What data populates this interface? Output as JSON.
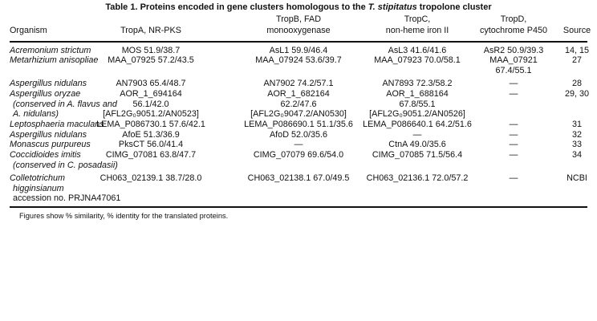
{
  "title": {
    "prefix": "Table 1. Proteins encoded in gene clusters homologous to the ",
    "italic": "T. stipitatus",
    "suffix": " tropolone cluster"
  },
  "columns": [
    {
      "key": "organism",
      "lines": [
        "Organism"
      ]
    },
    {
      "key": "tropA",
      "lines": [
        "TropA, NR-PKS"
      ]
    },
    {
      "key": "tropB",
      "lines": [
        "TropB, FAD",
        "monooxygenase"
      ]
    },
    {
      "key": "tropC",
      "lines": [
        "TropC,",
        "non-heme iron II"
      ]
    },
    {
      "key": "tropD",
      "lines": [
        "TropD,",
        "cytochrome P450"
      ]
    },
    {
      "key": "source",
      "lines": [
        "Source"
      ]
    }
  ],
  "rows": [
    {
      "organism": [
        "Acremonium strictum"
      ],
      "tropA": [
        "MOS 51.9/38.7"
      ],
      "tropB": [
        "AsL1 59.9/46.4"
      ],
      "tropC": [
        "AsL3 41.6/41.6"
      ],
      "tropD": [
        "AsR2 50.9/39.3"
      ],
      "source": [
        "14, 15"
      ]
    },
    {
      "organism": [
        "Metarhizium anisopliae"
      ],
      "tropA": [
        "MAA_07925 57.2/43.5"
      ],
      "tropB": [
        "MAA_07924 53.6/39.7"
      ],
      "tropC": [
        "MAA_07923 70.0/58.1"
      ],
      "tropD": [
        "MAA_07921",
        "67.4/55.1"
      ],
      "source": [
        "27"
      ]
    },
    {
      "organism": [
        "Aspergillus nidulans"
      ],
      "tropA": [
        "AN7903 65.4/48.7"
      ],
      "tropB": [
        "AN7902 74.2/57.1"
      ],
      "tropC": [
        "AN7893 72.3/58.2"
      ],
      "tropD": [
        "—"
      ],
      "source": [
        "28"
      ]
    },
    {
      "organism": [
        "Aspergillus oryzae",
        " (conserved in A. flavus and",
        " A. nidulans)"
      ],
      "tropA": [
        "AOR_1_694164",
        "56.1/42.0",
        "[AFL2G₀9051.2/AN0523]"
      ],
      "tropB": [
        "AOR_1_682164",
        "62.2/47.6",
        "[AFL2G₀9047.2/AN0530]"
      ],
      "tropC": [
        "AOR_1_688164",
        "67.8/55.1",
        "[AFL2G₀9051.2/AN0526]"
      ],
      "tropD": [
        "—"
      ],
      "source": [
        "29, 30"
      ]
    },
    {
      "organism": [
        "Leptosphaeria maculans"
      ],
      "tropA": [
        "LEMA_P086730.1 57.6/42.1"
      ],
      "tropB": [
        "LEMA_P086690.1 51.1/35.6"
      ],
      "tropC": [
        "LEMA_P086640.1 64.2/51.6"
      ],
      "tropD": [
        "—"
      ],
      "source": [
        "31"
      ]
    },
    {
      "organism": [
        "Aspergillus nidulans"
      ],
      "tropA": [
        "AfoE 51.3/36.9"
      ],
      "tropB": [
        "AfoD 52.0/35.6"
      ],
      "tropC": [
        "—"
      ],
      "tropD": [
        "—"
      ],
      "source": [
        "32"
      ]
    },
    {
      "organism": [
        "Monascus purpureus"
      ],
      "tropA": [
        "PksCT 56.0/41.4"
      ],
      "tropB": [
        "—"
      ],
      "tropC": [
        "CtnA 49.0/35.6"
      ],
      "tropD": [
        "—"
      ],
      "source": [
        "33"
      ]
    },
    {
      "organism": [
        "Coccidioides imitis",
        " (conserved in C. posadasii)"
      ],
      "tropA": [
        "CIMG_07081 63.8/47.7"
      ],
      "tropB": [
        "CIMG_07079 69.6/54.0"
      ],
      "tropC": [
        "CIMG_07085 71.5/56.4"
      ],
      "tropD": [
        "—"
      ],
      "source": [
        "34"
      ]
    },
    {
      "organism": [
        "Colletotrichum",
        " higginsianum",
        " accession no. PRJNA47061"
      ],
      "organism_roman_from": 2,
      "tropA": [
        "CH063_02139.1 38.7/28.0"
      ],
      "tropB": [
        "CH063_02138.1 67.0/49.5"
      ],
      "tropC": [
        "CH063_02136.1 72.0/57.2"
      ],
      "tropD": [
        "—"
      ],
      "source": [
        "NCBI"
      ]
    }
  ],
  "footnote": "Figures show % similarity, % identity for the translated proteins."
}
